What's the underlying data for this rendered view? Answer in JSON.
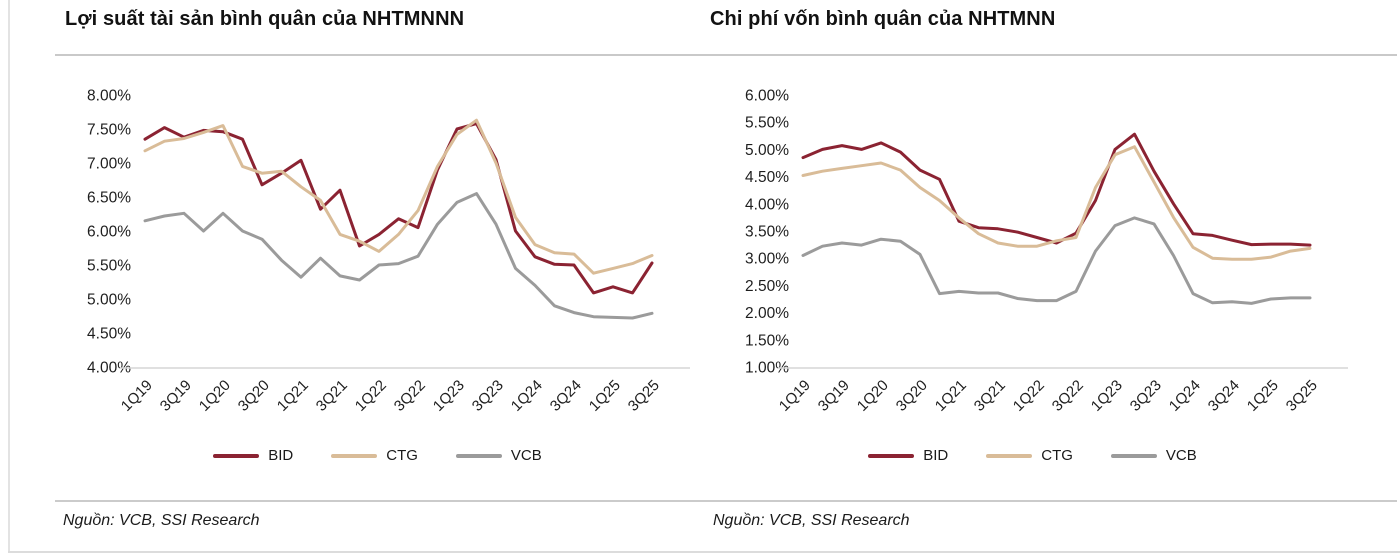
{
  "panel": {
    "source_note": "Nguồn: VCB, SSI Research"
  },
  "chart_data": [
    {
      "type": "line",
      "title": "Lợi suất tài sản bình quân của NHTMNNN",
      "categories": [
        "1Q19",
        "2Q19",
        "3Q19",
        "4Q19",
        "1Q20",
        "2Q20",
        "3Q20",
        "4Q20",
        "1Q21",
        "2Q21",
        "3Q21",
        "4Q21",
        "1Q22",
        "2Q22",
        "3Q22",
        "4Q22",
        "1Q23",
        "2Q23",
        "3Q23",
        "4Q23",
        "1Q24",
        "2Q24",
        "3Q24",
        "4Q24",
        "1Q25",
        "2Q25",
        "3Q25"
      ],
      "x_axis_labels_shown": [
        "1Q19",
        "3Q19",
        "1Q20",
        "3Q20",
        "1Q21",
        "3Q21",
        "1Q22",
        "3Q22",
        "1Q23",
        "3Q23",
        "1Q24",
        "3Q24",
        "1Q25",
        "3Q25"
      ],
      "ylim": [
        4.0,
        8.0
      ],
      "y_tick_labels": [
        "8.00%",
        "7.50%",
        "7.00%",
        "6.50%",
        "6.00%",
        "5.50%",
        "5.00%",
        "4.50%",
        "4.00%"
      ],
      "grid": false,
      "legend_position": "bottom",
      "series": [
        {
          "name": "BID",
          "color": "#8B2332",
          "values": [
            7.35,
            7.52,
            7.38,
            7.48,
            7.46,
            7.35,
            6.68,
            6.85,
            7.04,
            6.32,
            6.6,
            5.78,
            5.95,
            6.18,
            6.05,
            6.9,
            7.5,
            7.58,
            7.05,
            6.0,
            5.62,
            5.51,
            5.5,
            5.09,
            5.18,
            5.09,
            5.53
          ]
        },
        {
          "name": "CTG",
          "color": "#D9BC98",
          "values": [
            7.18,
            7.32,
            7.36,
            7.45,
            7.55,
            6.95,
            6.85,
            6.88,
            6.65,
            6.45,
            5.95,
            5.85,
            5.7,
            5.95,
            6.3,
            6.95,
            7.42,
            7.63,
            7.0,
            6.2,
            5.8,
            5.68,
            5.66,
            5.38,
            5.45,
            5.52,
            5.64
          ]
        },
        {
          "name": "VCB",
          "color": "#9B9B9B",
          "values": [
            6.15,
            6.22,
            6.26,
            6.0,
            6.26,
            6.0,
            5.88,
            5.57,
            5.32,
            5.6,
            5.34,
            5.28,
            5.5,
            5.52,
            5.63,
            6.1,
            6.42,
            6.55,
            6.1,
            5.45,
            5.2,
            4.9,
            4.8,
            4.74,
            4.73,
            4.72,
            4.79
          ]
        }
      ]
    },
    {
      "type": "line",
      "title": "Chi phí vốn bình quân của NHTMNN",
      "categories": [
        "1Q19",
        "2Q19",
        "3Q19",
        "4Q19",
        "1Q20",
        "2Q20",
        "3Q20",
        "4Q20",
        "1Q21",
        "2Q21",
        "3Q21",
        "4Q21",
        "1Q22",
        "2Q22",
        "3Q22",
        "4Q22",
        "1Q23",
        "2Q23",
        "3Q23",
        "4Q23",
        "1Q24",
        "2Q24",
        "3Q24",
        "4Q24",
        "1Q25",
        "2Q25",
        "3Q25"
      ],
      "x_axis_labels_shown": [
        "1Q19",
        "3Q19",
        "1Q20",
        "3Q20",
        "1Q21",
        "3Q21",
        "1Q22",
        "3Q22",
        "1Q23",
        "3Q23",
        "1Q24",
        "3Q24",
        "1Q25",
        "3Q25"
      ],
      "ylim": [
        1.0,
        6.0
      ],
      "y_tick_labels": [
        "6.00%",
        "5.50%",
        "5.00%",
        "4.50%",
        "4.00%",
        "3.50%",
        "3.00%",
        "2.50%",
        "2.00%",
        "1.50%",
        "1.00%"
      ],
      "grid": false,
      "legend_position": "bottom",
      "series": [
        {
          "name": "BID",
          "color": "#8B2332",
          "values": [
            4.85,
            5.0,
            5.07,
            5.0,
            5.12,
            4.95,
            4.62,
            4.45,
            3.68,
            3.56,
            3.54,
            3.48,
            3.38,
            3.28,
            3.46,
            4.06,
            5.0,
            5.28,
            4.6,
            4.0,
            3.45,
            3.42,
            3.33,
            3.25,
            3.26,
            3.26,
            3.24
          ]
        },
        {
          "name": "CTG",
          "color": "#D9BC98",
          "values": [
            4.52,
            4.6,
            4.65,
            4.7,
            4.75,
            4.62,
            4.3,
            4.06,
            3.74,
            3.45,
            3.28,
            3.22,
            3.22,
            3.32,
            3.38,
            4.3,
            4.9,
            5.05,
            4.4,
            3.75,
            3.2,
            3.0,
            2.98,
            2.98,
            3.02,
            3.13,
            3.18
          ]
        },
        {
          "name": "VCB",
          "color": "#9B9B9B",
          "values": [
            3.05,
            3.22,
            3.28,
            3.24,
            3.35,
            3.31,
            3.07,
            2.35,
            2.39,
            2.36,
            2.36,
            2.26,
            2.22,
            2.22,
            2.39,
            3.13,
            3.6,
            3.74,
            3.63,
            3.05,
            2.35,
            2.18,
            2.2,
            2.17,
            2.25,
            2.27,
            2.27
          ]
        }
      ]
    }
  ]
}
